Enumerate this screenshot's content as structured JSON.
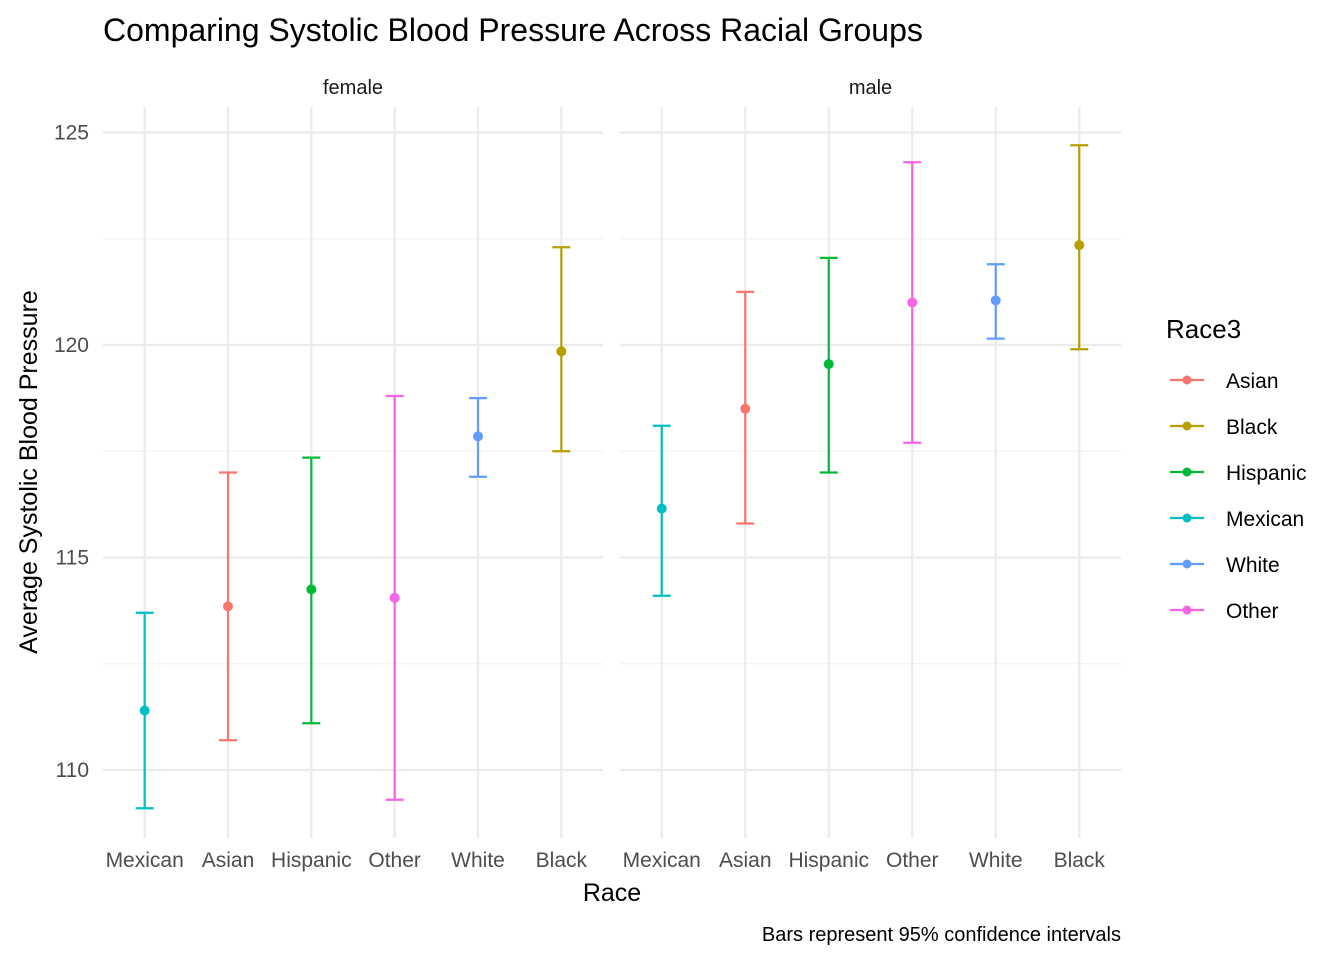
{
  "chart_data": {
    "type": "scatter",
    "subtype": "point-with-errorbars",
    "title": "Comparing Systolic Blood Pressure Across Racial Groups",
    "xlabel": "Race",
    "ylabel": "Average Systolic Blood Pressure",
    "caption": "Bars represent 95% confidence intervals",
    "categories": [
      "Mexican",
      "Asian",
      "Hispanic",
      "Other",
      "White",
      "Black"
    ],
    "y_ticks": [
      "110",
      "115",
      "120",
      "125"
    ],
    "ylim": [
      108.4,
      125.6
    ],
    "grid": true,
    "legend": {
      "title": "Race3",
      "position": "right",
      "entries": [
        {
          "label": "Asian",
          "color": "#F8766D"
        },
        {
          "label": "Black",
          "color": "#B79F00"
        },
        {
          "label": "Hispanic",
          "color": "#00BA38"
        },
        {
          "label": "Mexican",
          "color": "#00BFC4"
        },
        {
          "label": "White",
          "color": "#619CFF"
        },
        {
          "label": "Other",
          "color": "#F564E3"
        }
      ]
    },
    "facets": [
      {
        "label": "female",
        "points": [
          {
            "race": "Mexican",
            "mean": 111.4,
            "lower": 109.1,
            "upper": 113.7
          },
          {
            "race": "Asian",
            "mean": 113.85,
            "lower": 110.7,
            "upper": 117.0
          },
          {
            "race": "Hispanic",
            "mean": 114.25,
            "lower": 111.1,
            "upper": 117.35
          },
          {
            "race": "Other",
            "mean": 114.05,
            "lower": 109.3,
            "upper": 118.8
          },
          {
            "race": "White",
            "mean": 117.85,
            "lower": 116.9,
            "upper": 118.75
          },
          {
            "race": "Black",
            "mean": 119.85,
            "lower": 117.5,
            "upper": 122.3
          }
        ]
      },
      {
        "label": "male",
        "points": [
          {
            "race": "Mexican",
            "mean": 116.15,
            "lower": 114.1,
            "upper": 118.1
          },
          {
            "race": "Asian",
            "mean": 118.5,
            "lower": 115.8,
            "upper": 121.25
          },
          {
            "race": "Hispanic",
            "mean": 119.55,
            "lower": 117.0,
            "upper": 122.05
          },
          {
            "race": "Other",
            "mean": 121.0,
            "lower": 117.7,
            "upper": 124.3
          },
          {
            "race": "White",
            "mean": 121.05,
            "lower": 120.15,
            "upper": 121.9
          },
          {
            "race": "Black",
            "mean": 122.35,
            "lower": 119.9,
            "upper": 124.7
          }
        ]
      }
    ]
  }
}
